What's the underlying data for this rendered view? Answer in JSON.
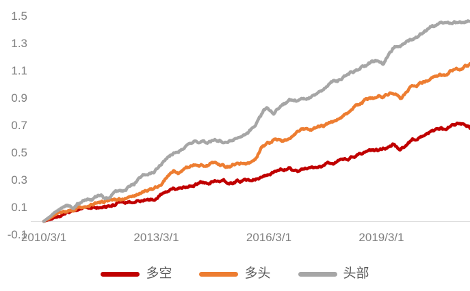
{
  "chart_data": {
    "type": "line",
    "title": "",
    "grid": "none",
    "legend_position": "bottom",
    "background": "#FFFFFF",
    "axis_line_color": "#D9D9D9",
    "tick_label_color": "#808080",
    "legend_label_color": "#595959",
    "x_axis": {
      "tick_labels": [
        "2010/3/1",
        "2013/3/1",
        "2016/3/1",
        "2019/3/1"
      ],
      "tick_years": [
        2010.17,
        2013.17,
        2016.17,
        2019.17
      ],
      "range_years": [
        2010.17,
        2021.53
      ]
    },
    "y_axis": {
      "tick_labels": [
        "-0.1",
        "0.1",
        "0.3",
        "0.5",
        "0.7",
        "0.9",
        "1.1",
        "1.3",
        "1.5"
      ],
      "tick_values": [
        -0.1,
        0.1,
        0.3,
        0.5,
        0.7,
        0.9,
        1.1,
        1.3,
        1.5
      ],
      "range": [
        -0.1,
        1.5
      ]
    },
    "series": [
      {
        "name": "多空",
        "slug": "long-short",
        "color": "#C00000",
        "end_value": 0.68,
        "points": [
          [
            2010.17,
            0
          ],
          [
            2010.4,
            0.025
          ],
          [
            2010.6,
            0.045
          ],
          [
            2010.75,
            0.055
          ],
          [
            2010.95,
            0.07
          ],
          [
            2011.15,
            0.08
          ],
          [
            2011.35,
            0.09
          ],
          [
            2011.6,
            0.105
          ],
          [
            2011.8,
            0.12
          ],
          [
            2012.0,
            0.13
          ],
          [
            2012.2,
            0.135
          ],
          [
            2012.4,
            0.14
          ],
          [
            2012.6,
            0.148
          ],
          [
            2012.85,
            0.155
          ],
          [
            2013.05,
            0.165
          ],
          [
            2013.2,
            0.175
          ],
          [
            2013.38,
            0.205
          ],
          [
            2013.52,
            0.228
          ],
          [
            2013.62,
            0.24
          ],
          [
            2013.72,
            0.225
          ],
          [
            2013.92,
            0.24
          ],
          [
            2014.12,
            0.26
          ],
          [
            2014.32,
            0.275
          ],
          [
            2014.55,
            0.28
          ],
          [
            2014.72,
            0.29
          ],
          [
            2014.92,
            0.28
          ],
          [
            2015.12,
            0.28
          ],
          [
            2015.32,
            0.287
          ],
          [
            2015.57,
            0.292
          ],
          [
            2015.77,
            0.305
          ],
          [
            2015.97,
            0.33
          ],
          [
            2016.17,
            0.35
          ],
          [
            2016.37,
            0.36
          ],
          [
            2016.57,
            0.375
          ],
          [
            2016.72,
            0.39
          ],
          [
            2016.92,
            0.385
          ],
          [
            2017.12,
            0.376
          ],
          [
            2017.32,
            0.395
          ],
          [
            2017.57,
            0.405
          ],
          [
            2017.82,
            0.418
          ],
          [
            2018.12,
            0.437
          ],
          [
            2018.32,
            0.455
          ],
          [
            2018.57,
            0.5
          ],
          [
            2018.82,
            0.515
          ],
          [
            2019.07,
            0.525
          ],
          [
            2019.32,
            0.54
          ],
          [
            2019.47,
            0.555
          ],
          [
            2019.67,
            0.52
          ],
          [
            2019.97,
            0.59
          ],
          [
            2020.22,
            0.625
          ],
          [
            2020.42,
            0.64
          ],
          [
            2020.62,
            0.67
          ],
          [
            2020.82,
            0.663
          ],
          [
            2021.07,
            0.7
          ],
          [
            2021.27,
            0.715
          ],
          [
            2021.42,
            0.697
          ],
          [
            2021.53,
            0.685
          ]
        ]
      },
      {
        "name": "多头",
        "slug": "long-only",
        "color": "#ED7D31",
        "end_value": 1.15,
        "points": [
          [
            2010.17,
            0
          ],
          [
            2010.4,
            0.032
          ],
          [
            2010.6,
            0.06
          ],
          [
            2010.75,
            0.07
          ],
          [
            2010.95,
            0.085
          ],
          [
            2011.15,
            0.1
          ],
          [
            2011.35,
            0.115
          ],
          [
            2011.6,
            0.13
          ],
          [
            2011.8,
            0.145
          ],
          [
            2012.0,
            0.155
          ],
          [
            2012.2,
            0.16
          ],
          [
            2012.4,
            0.167
          ],
          [
            2012.6,
            0.19
          ],
          [
            2012.85,
            0.22
          ],
          [
            2013.05,
            0.24
          ],
          [
            2013.2,
            0.26
          ],
          [
            2013.38,
            0.3
          ],
          [
            2013.52,
            0.345
          ],
          [
            2013.65,
            0.375
          ],
          [
            2013.77,
            0.355
          ],
          [
            2013.92,
            0.38
          ],
          [
            2014.12,
            0.405
          ],
          [
            2014.27,
            0.415
          ],
          [
            2014.47,
            0.405
          ],
          [
            2014.67,
            0.425
          ],
          [
            2014.77,
            0.43
          ],
          [
            2014.92,
            0.415
          ],
          [
            2015.12,
            0.405
          ],
          [
            2015.32,
            0.425
          ],
          [
            2015.52,
            0.415
          ],
          [
            2015.67,
            0.43
          ],
          [
            2015.82,
            0.46
          ],
          [
            2015.97,
            0.53
          ],
          [
            2016.12,
            0.565
          ],
          [
            2016.32,
            0.6
          ],
          [
            2016.52,
            0.59
          ],
          [
            2016.67,
            0.6
          ],
          [
            2016.82,
            0.64
          ],
          [
            2017.02,
            0.665
          ],
          [
            2017.32,
            0.67
          ],
          [
            2017.62,
            0.7
          ],
          [
            2017.92,
            0.735
          ],
          [
            2018.22,
            0.78
          ],
          [
            2018.52,
            0.84
          ],
          [
            2018.77,
            0.88
          ],
          [
            2019.02,
            0.895
          ],
          [
            2019.27,
            0.92
          ],
          [
            2019.5,
            0.935
          ],
          [
            2019.67,
            0.89
          ],
          [
            2019.97,
            0.98
          ],
          [
            2020.17,
            1.005
          ],
          [
            2020.37,
            1.03
          ],
          [
            2020.72,
            1.07
          ],
          [
            2020.92,
            1.08
          ],
          [
            2021.12,
            1.125
          ],
          [
            2021.32,
            1.13
          ],
          [
            2021.53,
            1.155
          ]
        ]
      },
      {
        "name": "头部",
        "slug": "head",
        "color": "#A6A6A6",
        "end_value": 1.48,
        "points": [
          [
            2010.17,
            0
          ],
          [
            2010.37,
            0.04
          ],
          [
            2010.57,
            0.085
          ],
          [
            2010.72,
            0.105
          ],
          [
            2010.87,
            0.12
          ],
          [
            2010.97,
            0.105
          ],
          [
            2011.12,
            0.14
          ],
          [
            2011.32,
            0.15
          ],
          [
            2011.57,
            0.17
          ],
          [
            2011.7,
            0.185
          ],
          [
            2011.8,
            0.16
          ],
          [
            2011.97,
            0.19
          ],
          [
            2012.17,
            0.205
          ],
          [
            2012.35,
            0.215
          ],
          [
            2012.52,
            0.26
          ],
          [
            2012.67,
            0.3
          ],
          [
            2012.82,
            0.345
          ],
          [
            2012.97,
            0.36
          ],
          [
            2013.12,
            0.37
          ],
          [
            2013.32,
            0.42
          ],
          [
            2013.47,
            0.46
          ],
          [
            2013.62,
            0.5
          ],
          [
            2013.72,
            0.49
          ],
          [
            2013.82,
            0.515
          ],
          [
            2014.02,
            0.55
          ],
          [
            2014.22,
            0.58
          ],
          [
            2014.37,
            0.59
          ],
          [
            2014.57,
            0.575
          ],
          [
            2014.77,
            0.595
          ],
          [
            2014.92,
            0.58
          ],
          [
            2015.12,
            0.595
          ],
          [
            2015.37,
            0.6
          ],
          [
            2015.62,
            0.625
          ],
          [
            2015.82,
            0.7
          ],
          [
            2016.02,
            0.8
          ],
          [
            2016.14,
            0.81
          ],
          [
            2016.3,
            0.78
          ],
          [
            2016.52,
            0.85
          ],
          [
            2016.72,
            0.87
          ],
          [
            2016.97,
            0.875
          ],
          [
            2017.17,
            0.89
          ],
          [
            2017.37,
            0.92
          ],
          [
            2017.57,
            0.95
          ],
          [
            2017.82,
            1.0
          ],
          [
            2018.02,
            1.025
          ],
          [
            2018.32,
            1.075
          ],
          [
            2018.62,
            1.12
          ],
          [
            2018.92,
            1.165
          ],
          [
            2019.07,
            1.17
          ],
          [
            2019.22,
            1.15
          ],
          [
            2019.47,
            1.25
          ],
          [
            2019.82,
            1.305
          ],
          [
            2020.17,
            1.36
          ],
          [
            2020.52,
            1.44
          ],
          [
            2020.77,
            1.455
          ],
          [
            2020.92,
            1.445
          ],
          [
            2021.17,
            1.465
          ],
          [
            2021.53,
            1.48
          ]
        ]
      }
    ]
  }
}
